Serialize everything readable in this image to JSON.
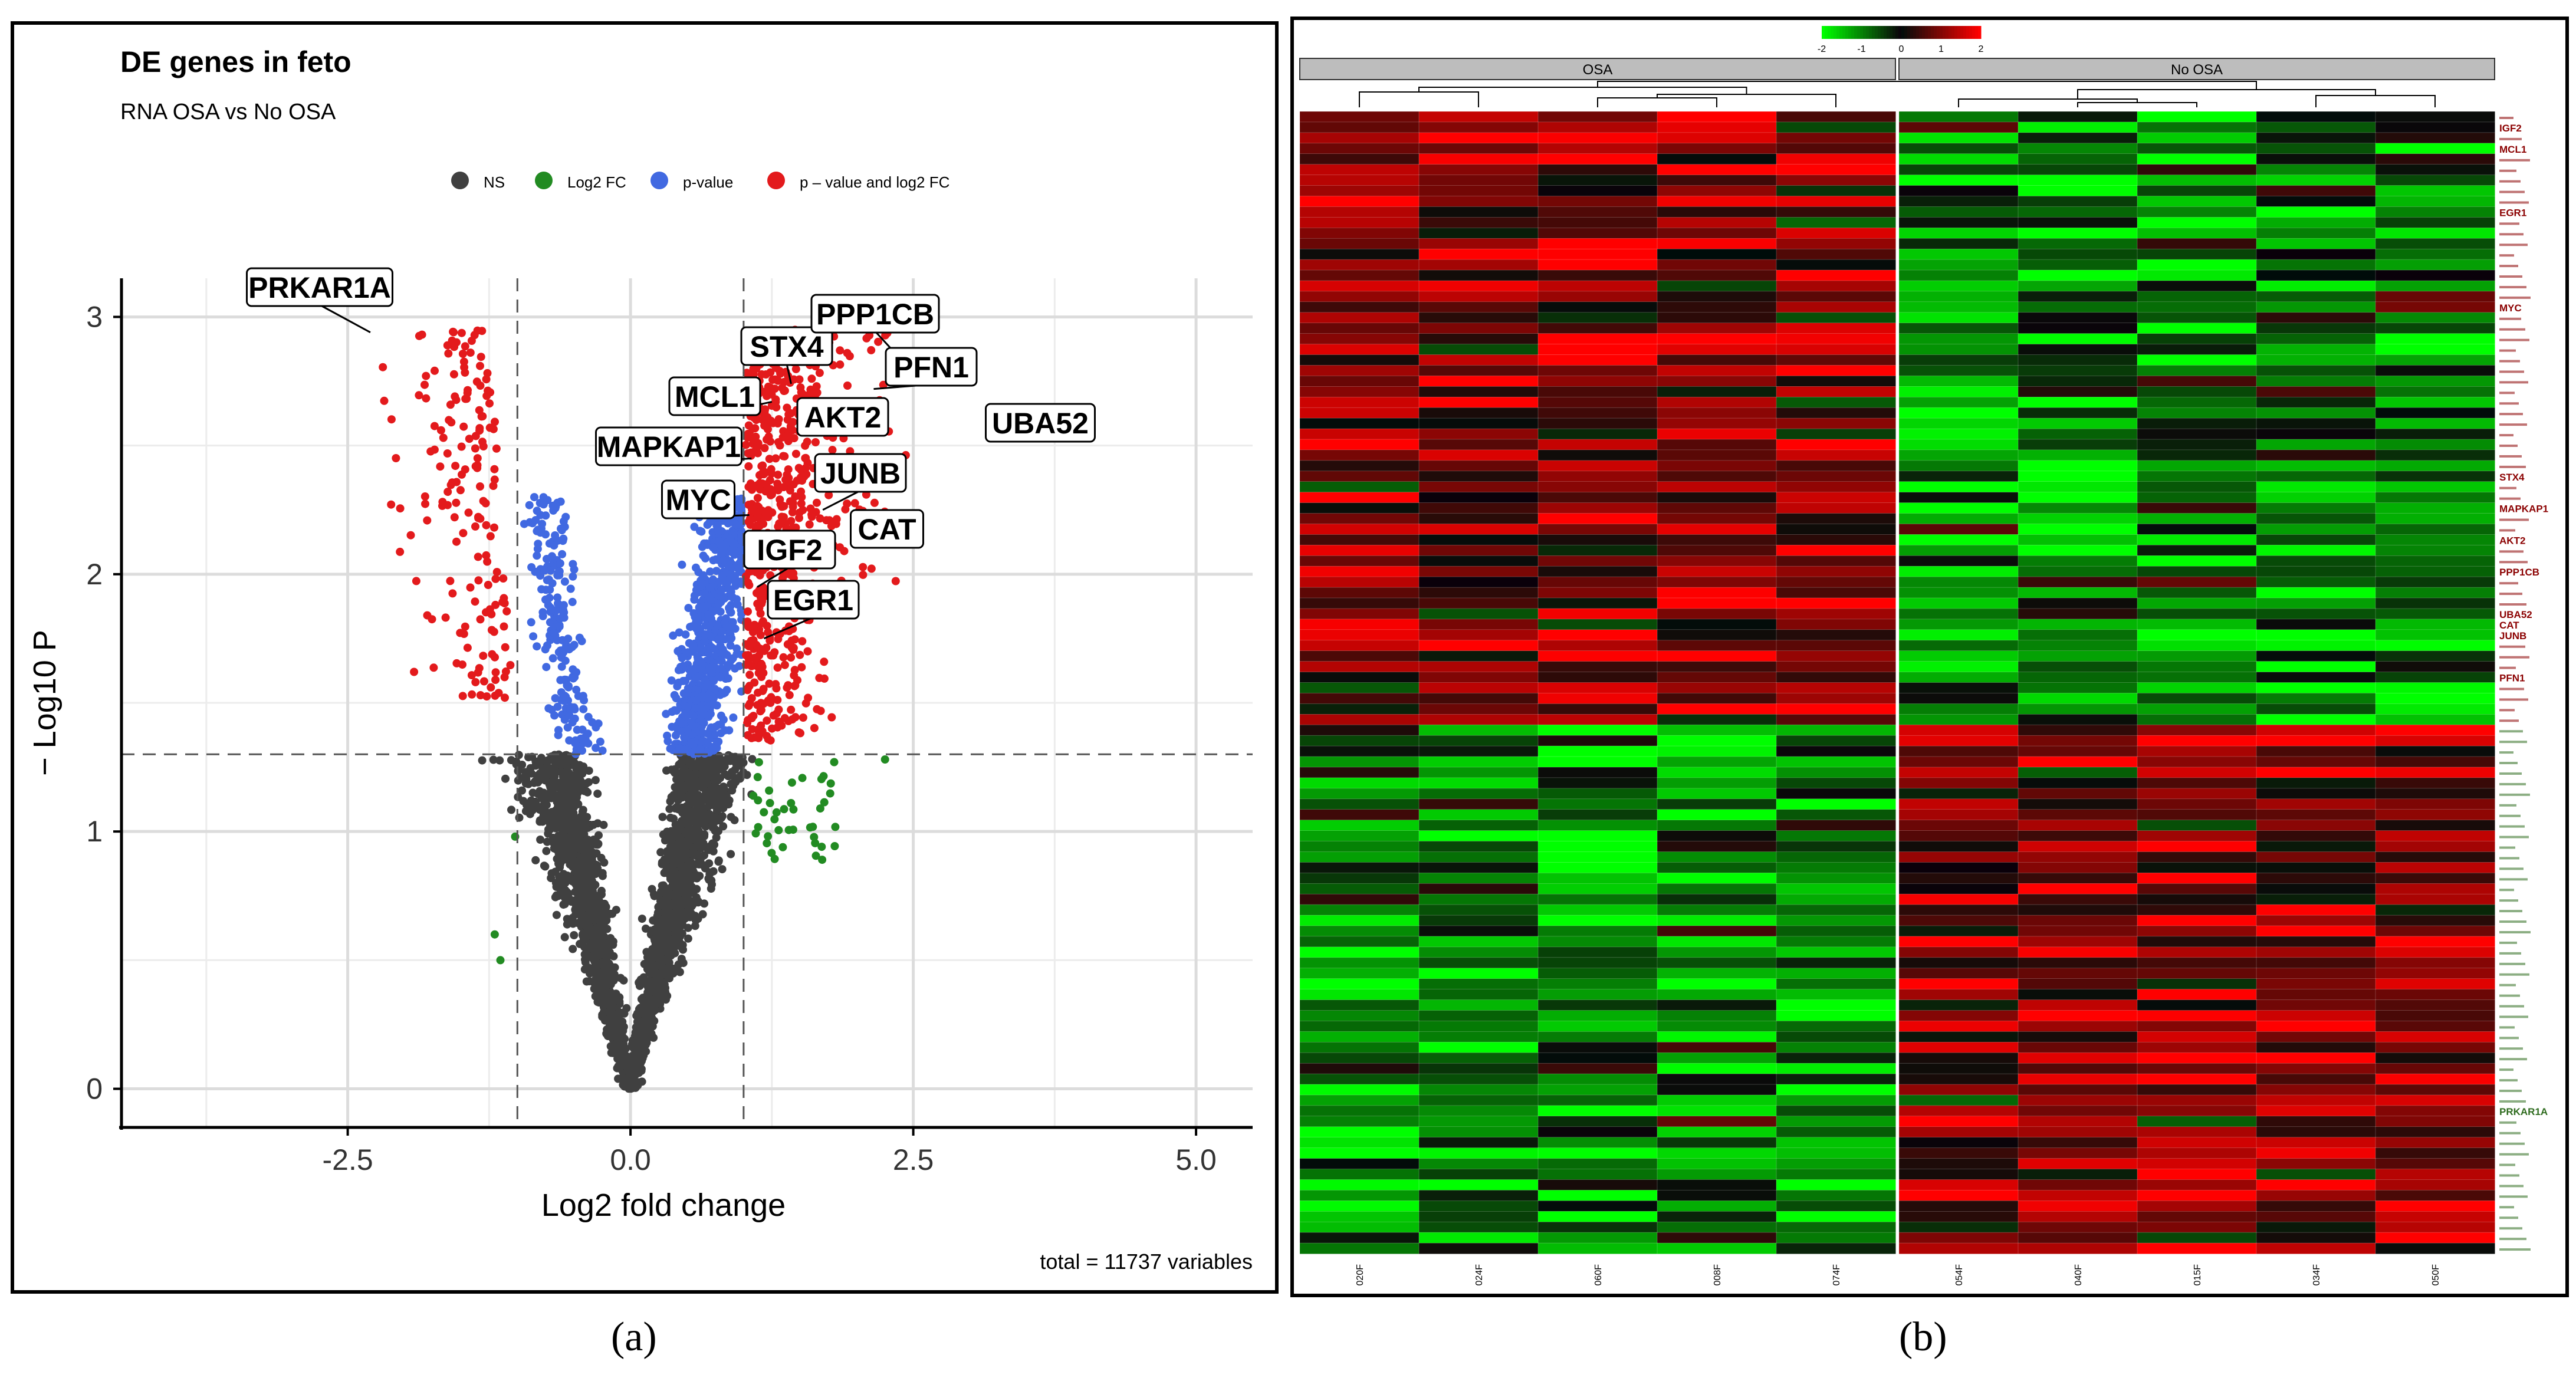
{
  "chart_data": [
    {
      "type": "scatter",
      "title": "DE genes in feto",
      "subtitle": "RNA OSA vs No OSA",
      "xlabel": "Log2 fold change",
      "ylabel": "− Log10 P",
      "xlim": [
        -4.5,
        5.5
      ],
      "ylim": [
        -0.15,
        3.15
      ],
      "x_ticks": [
        "-2.5",
        "0.0",
        "2.5",
        "5.0"
      ],
      "y_ticks": [
        "0",
        "1",
        "2",
        "3"
      ],
      "fc_cutoff": 1.0,
      "p_cutoff": 1.3,
      "legend": [
        {
          "label": "NS",
          "color": "#404040"
        },
        {
          "label": "Log2 FC",
          "color": "#228b22"
        },
        {
          "label": "p-value",
          "color": "#4169e1"
        },
        {
          "label": "p – value and log2 FC",
          "color": "#e31a1c"
        }
      ],
      "caption": "total = 11737 variables",
      "labeled_genes": [
        {
          "gene": "PRKAR1A",
          "x": -2.3,
          "y": 2.94
        },
        {
          "gene": "STX4",
          "x": 1.42,
          "y": 2.74
        },
        {
          "gene": "PPP1CB",
          "x": 2.38,
          "y": 2.84
        },
        {
          "gene": "PFN1",
          "x": 2.15,
          "y": 2.72
        },
        {
          "gene": "MCL1",
          "x": 1.25,
          "y": 2.67
        },
        {
          "gene": "AKT2",
          "x": 1.85,
          "y": 2.62
        },
        {
          "gene": "UBA52",
          "x": 3.3,
          "y": 2.62
        },
        {
          "gene": "MAPKAP1",
          "x": 1.07,
          "y": 2.45
        },
        {
          "gene": "JUNB",
          "x": 1.7,
          "y": 2.25
        },
        {
          "gene": "MYC",
          "x": 1.05,
          "y": 2.23
        },
        {
          "gene": "CAT",
          "x": 1.95,
          "y": 2.2
        },
        {
          "gene": "IGF2",
          "x": 1.12,
          "y": 1.95
        },
        {
          "gene": "EGR1",
          "x": 1.18,
          "y": 1.75
        }
      ]
    },
    {
      "type": "heatmap",
      "scale_ticks": [
        "-2",
        "-1",
        "0",
        "1",
        "2"
      ],
      "groups": [
        "OSA",
        "No OSA"
      ],
      "columns": [
        "020F",
        "024F",
        "060F",
        "008F",
        "074F",
        "054F",
        "040F",
        "015F",
        "034F",
        "050F"
      ],
      "highlighted_genes": [
        "IGF2",
        "MCL1",
        "EGR1",
        "MYC",
        "STX4",
        "MAPKAP1",
        "AKT2",
        "PPP1CB",
        "UBA52",
        "CAT",
        "JUNB",
        "PFN1",
        "PRKAR1A"
      ]
    }
  ],
  "panel_labels": {
    "a": "(a)",
    "b": "(b)"
  }
}
